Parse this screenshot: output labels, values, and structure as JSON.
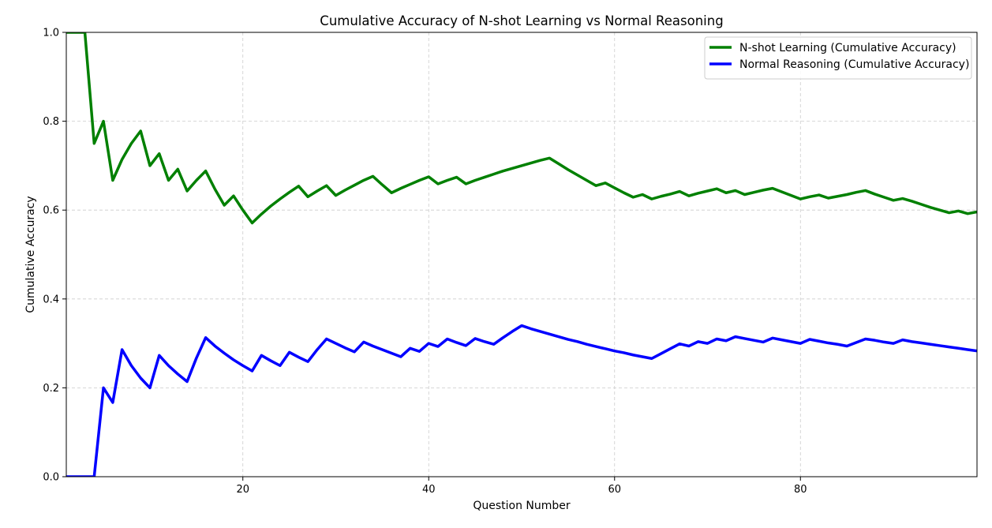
{
  "chart_data": {
    "type": "line",
    "title": "Cumulative Accuracy of N-shot Learning vs Normal Reasoning",
    "xlabel": "Question Number",
    "ylabel": "Cumulative Accuracy",
    "xlim": [
      1,
      99
    ],
    "ylim": [
      0.0,
      1.0
    ],
    "x_ticks": [
      20,
      40,
      60,
      80
    ],
    "y_ticks": [
      0.0,
      0.2,
      0.4,
      0.6,
      0.8,
      1.0
    ],
    "y_tick_labels": [
      "0.0",
      "0.2",
      "0.4",
      "0.6",
      "0.8",
      "1.0"
    ],
    "grid": true,
    "legend_position": "top-right",
    "series": [
      {
        "name": "N-shot Learning (Cumulative Accuracy)",
        "color": "#008000",
        "x": [
          1,
          2,
          3,
          4,
          5,
          6,
          7,
          8,
          9,
          10,
          11,
          12,
          13,
          14,
          15,
          16,
          17,
          18,
          19,
          20,
          21,
          22,
          23,
          24,
          25,
          26,
          27,
          28,
          29,
          30,
          31,
          32,
          33,
          34,
          35,
          36,
          37,
          38,
          39,
          40,
          41,
          42,
          43,
          44,
          45,
          46,
          47,
          48,
          49,
          50,
          51,
          52,
          53,
          54,
          55,
          56,
          57,
          58,
          59,
          60,
          61,
          62,
          63,
          64,
          65,
          66,
          67,
          68,
          69,
          70,
          71,
          72,
          73,
          74,
          75,
          76,
          77,
          78,
          79,
          80,
          81,
          82,
          83,
          84,
          85,
          86,
          87,
          88,
          89,
          90,
          91,
          92,
          93,
          94,
          95,
          96,
          97,
          98,
          99
        ],
        "values": [
          1.0,
          1.0,
          1.0,
          0.75,
          0.8,
          0.667,
          0.714,
          0.75,
          0.778,
          0.7,
          0.727,
          0.667,
          0.692,
          0.643,
          0.667,
          0.688,
          0.647,
          0.611,
          0.632,
          0.6,
          0.571,
          0.591,
          0.609,
          0.625,
          0.64,
          0.654,
          0.63,
          0.643,
          0.655,
          0.633,
          0.645,
          0.656,
          0.667,
          0.676,
          0.657,
          0.639,
          0.649,
          0.658,
          0.667,
          0.675,
          0.659,
          0.667,
          0.674,
          0.659,
          0.667,
          0.674,
          0.681,
          0.688,
          0.694,
          0.7,
          0.706,
          0.712,
          0.717,
          0.704,
          0.691,
          0.679,
          0.667,
          0.655,
          0.661,
          0.65,
          0.639,
          0.629,
          0.635,
          0.625,
          0.631,
          0.636,
          0.642,
          0.632,
          0.638,
          0.643,
          0.648,
          0.639,
          0.644,
          0.635,
          0.64,
          0.645,
          0.649,
          0.641,
          0.633,
          0.625,
          0.63,
          0.634,
          0.627,
          0.631,
          0.635,
          0.64,
          0.644,
          0.636,
          0.629,
          0.622,
          0.626,
          0.62,
          0.613,
          0.606,
          0.6,
          0.594,
          0.598,
          0.592,
          0.596
        ]
      },
      {
        "name": "Normal Reasoning (Cumulative Accuracy)",
        "color": "#0000ff",
        "x": [
          1,
          2,
          3,
          4,
          5,
          6,
          7,
          8,
          9,
          10,
          11,
          12,
          13,
          14,
          15,
          16,
          17,
          18,
          19,
          20,
          21,
          22,
          23,
          24,
          25,
          26,
          27,
          28,
          29,
          30,
          31,
          32,
          33,
          34,
          35,
          36,
          37,
          38,
          39,
          40,
          41,
          42,
          43,
          44,
          45,
          46,
          47,
          48,
          49,
          50,
          51,
          52,
          53,
          54,
          55,
          56,
          57,
          58,
          59,
          60,
          61,
          62,
          63,
          64,
          65,
          66,
          67,
          68,
          69,
          70,
          71,
          72,
          73,
          74,
          75,
          76,
          77,
          78,
          79,
          80,
          81,
          82,
          83,
          84,
          85,
          86,
          87,
          88,
          89,
          90,
          91,
          92,
          93,
          94,
          95,
          96,
          97,
          98,
          99
        ],
        "values": [
          0.0,
          0.0,
          0.0,
          0.0,
          0.2,
          0.167,
          0.286,
          0.25,
          0.222,
          0.2,
          0.273,
          0.25,
          0.231,
          0.214,
          0.267,
          0.313,
          0.294,
          0.278,
          0.263,
          0.25,
          0.238,
          0.273,
          0.261,
          0.25,
          0.28,
          0.269,
          0.259,
          0.286,
          0.31,
          0.3,
          0.29,
          0.281,
          0.303,
          0.294,
          0.286,
          0.278,
          0.27,
          0.289,
          0.282,
          0.3,
          0.293,
          0.31,
          0.302,
          0.295,
          0.311,
          0.304,
          0.298,
          0.313,
          0.327,
          0.34,
          0.333,
          0.327,
          0.321,
          0.315,
          0.309,
          0.304,
          0.298,
          0.293,
          0.288,
          0.283,
          0.279,
          0.274,
          0.27,
          0.266,
          0.277,
          0.288,
          0.299,
          0.294,
          0.304,
          0.3,
          0.31,
          0.306,
          0.315,
          0.311,
          0.307,
          0.303,
          0.312,
          0.308,
          0.304,
          0.3,
          0.309,
          0.305,
          0.301,
          0.298,
          0.294,
          0.302,
          0.31,
          0.307,
          0.303,
          0.3,
          0.308,
          0.304,
          0.301,
          0.298,
          0.295,
          0.292,
          0.289,
          0.286,
          0.283
        ]
      }
    ]
  }
}
